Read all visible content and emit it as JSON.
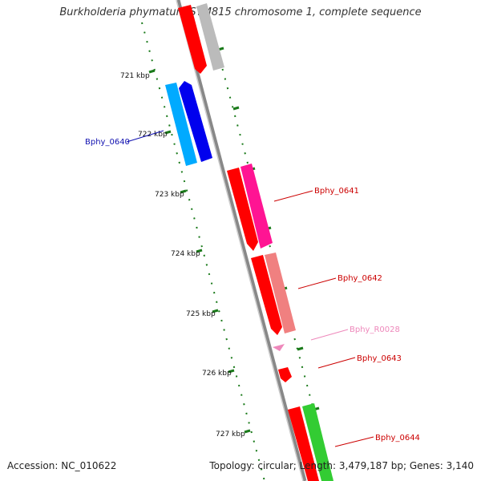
{
  "header": {
    "title": "Burkholderia phymatum STM815 chromosome 1, complete sequence"
  },
  "ruler": {
    "ticks": [
      "721 kbp",
      "722 kbp",
      "723 kbp",
      "724 kbp",
      "725 kbp",
      "726 kbp",
      "727 kbp"
    ]
  },
  "genes": [
    {
      "label": "Bphy_0640",
      "color": "#1010b0"
    },
    {
      "label": "Bphy_0641",
      "color": "#cc0000"
    },
    {
      "label": "Bphy_0642",
      "color": "#cc0000"
    },
    {
      "label": "Bphy_R0028",
      "color": "#ee88bb"
    },
    {
      "label": "Bphy_0643",
      "color": "#cc0000"
    },
    {
      "label": "Bphy_0644",
      "color": "#cc0000"
    }
  ],
  "footer": {
    "accession": "Accession: NC_010622",
    "summary": "Topology: circular; Length: 3,479,187 bp; Genes: 3,140"
  },
  "colors": {
    "backbone": "#888888",
    "cds_forward": "#ff0000",
    "cds_reverse": "#ff0000",
    "cyan": "#00aaff",
    "blue": "#0000ee",
    "magenta": "#ff1493",
    "salmon": "#f08080",
    "green": "#33cc33",
    "gray": "#bbbbbb",
    "tick": "#1a7a1a"
  }
}
